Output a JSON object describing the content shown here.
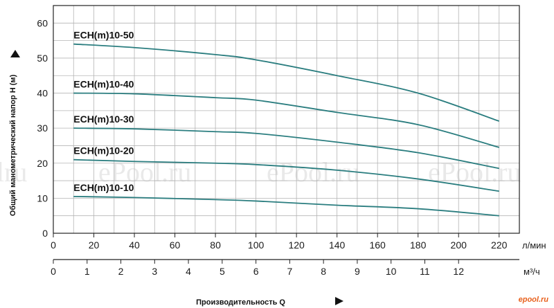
{
  "watermarks": [
    "lru",
    "ePool.ru",
    "ePool.ru",
    "ePool.ru"
  ],
  "logo": "epool.ru",
  "colors": {
    "curve": "#2a7d7f",
    "grid": "#b4b4b4",
    "axis": "#222222"
  },
  "chart_data": {
    "type": "line",
    "title": "",
    "xlabel": "Производительность Q",
    "ylabel": "Общий манометрический напор H (м)",
    "grid": true,
    "ylim": [
      0,
      65
    ],
    "xlim": [
      0,
      230
    ],
    "x_unit": "л/мин",
    "x_ticks": [
      0,
      20,
      40,
      60,
      80,
      100,
      120,
      140,
      160,
      180,
      200,
      220
    ],
    "y_ticks": [
      0,
      10,
      20,
      30,
      40,
      50,
      60
    ],
    "secondary_x": {
      "unit": "м³/ч",
      "ticks": [
        0,
        1,
        2,
        3,
        4,
        5,
        6,
        7,
        8,
        9,
        10,
        11,
        12
      ]
    },
    "x": [
      10,
      40,
      80,
      100,
      140,
      180,
      220
    ],
    "series": [
      {
        "name": "ECH(m)10-50",
        "values": [
          54,
          53,
          51,
          49.5,
          45,
          40,
          32
        ]
      },
      {
        "name": "ECH(m)10-40",
        "values": [
          40,
          39.8,
          38.7,
          38,
          34.5,
          31,
          24.5
        ]
      },
      {
        "name": "ECH(m)10-30",
        "values": [
          30,
          29.8,
          29,
          28.5,
          26,
          23,
          18.5
        ]
      },
      {
        "name": "ECH(m)10-20",
        "values": [
          21,
          20.5,
          20,
          19.6,
          18,
          15.5,
          12
        ]
      },
      {
        "name": "ECH(m)10-10",
        "values": [
          10.5,
          10.2,
          9.6,
          9.2,
          8,
          7,
          5
        ]
      }
    ]
  }
}
